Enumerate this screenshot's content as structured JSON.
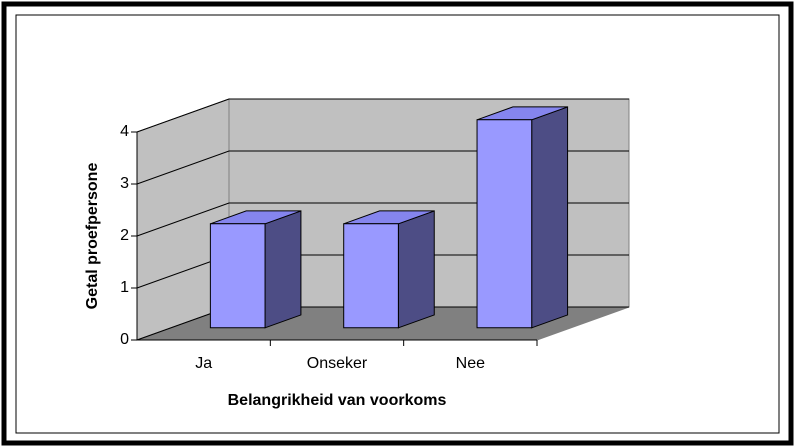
{
  "chart_data": {
    "type": "bar3d",
    "x_label": "Belangrikheid van voorkoms",
    "y_label": "Getal proefpersone",
    "categories": [
      "Ja",
      "Onseker",
      "Nee"
    ],
    "values": [
      2,
      2,
      4
    ],
    "color": "#9999ff",
    "ylim": [
      0,
      4
    ],
    "yticks": [
      0,
      1,
      2,
      3,
      4
    ],
    "grid": true
  }
}
